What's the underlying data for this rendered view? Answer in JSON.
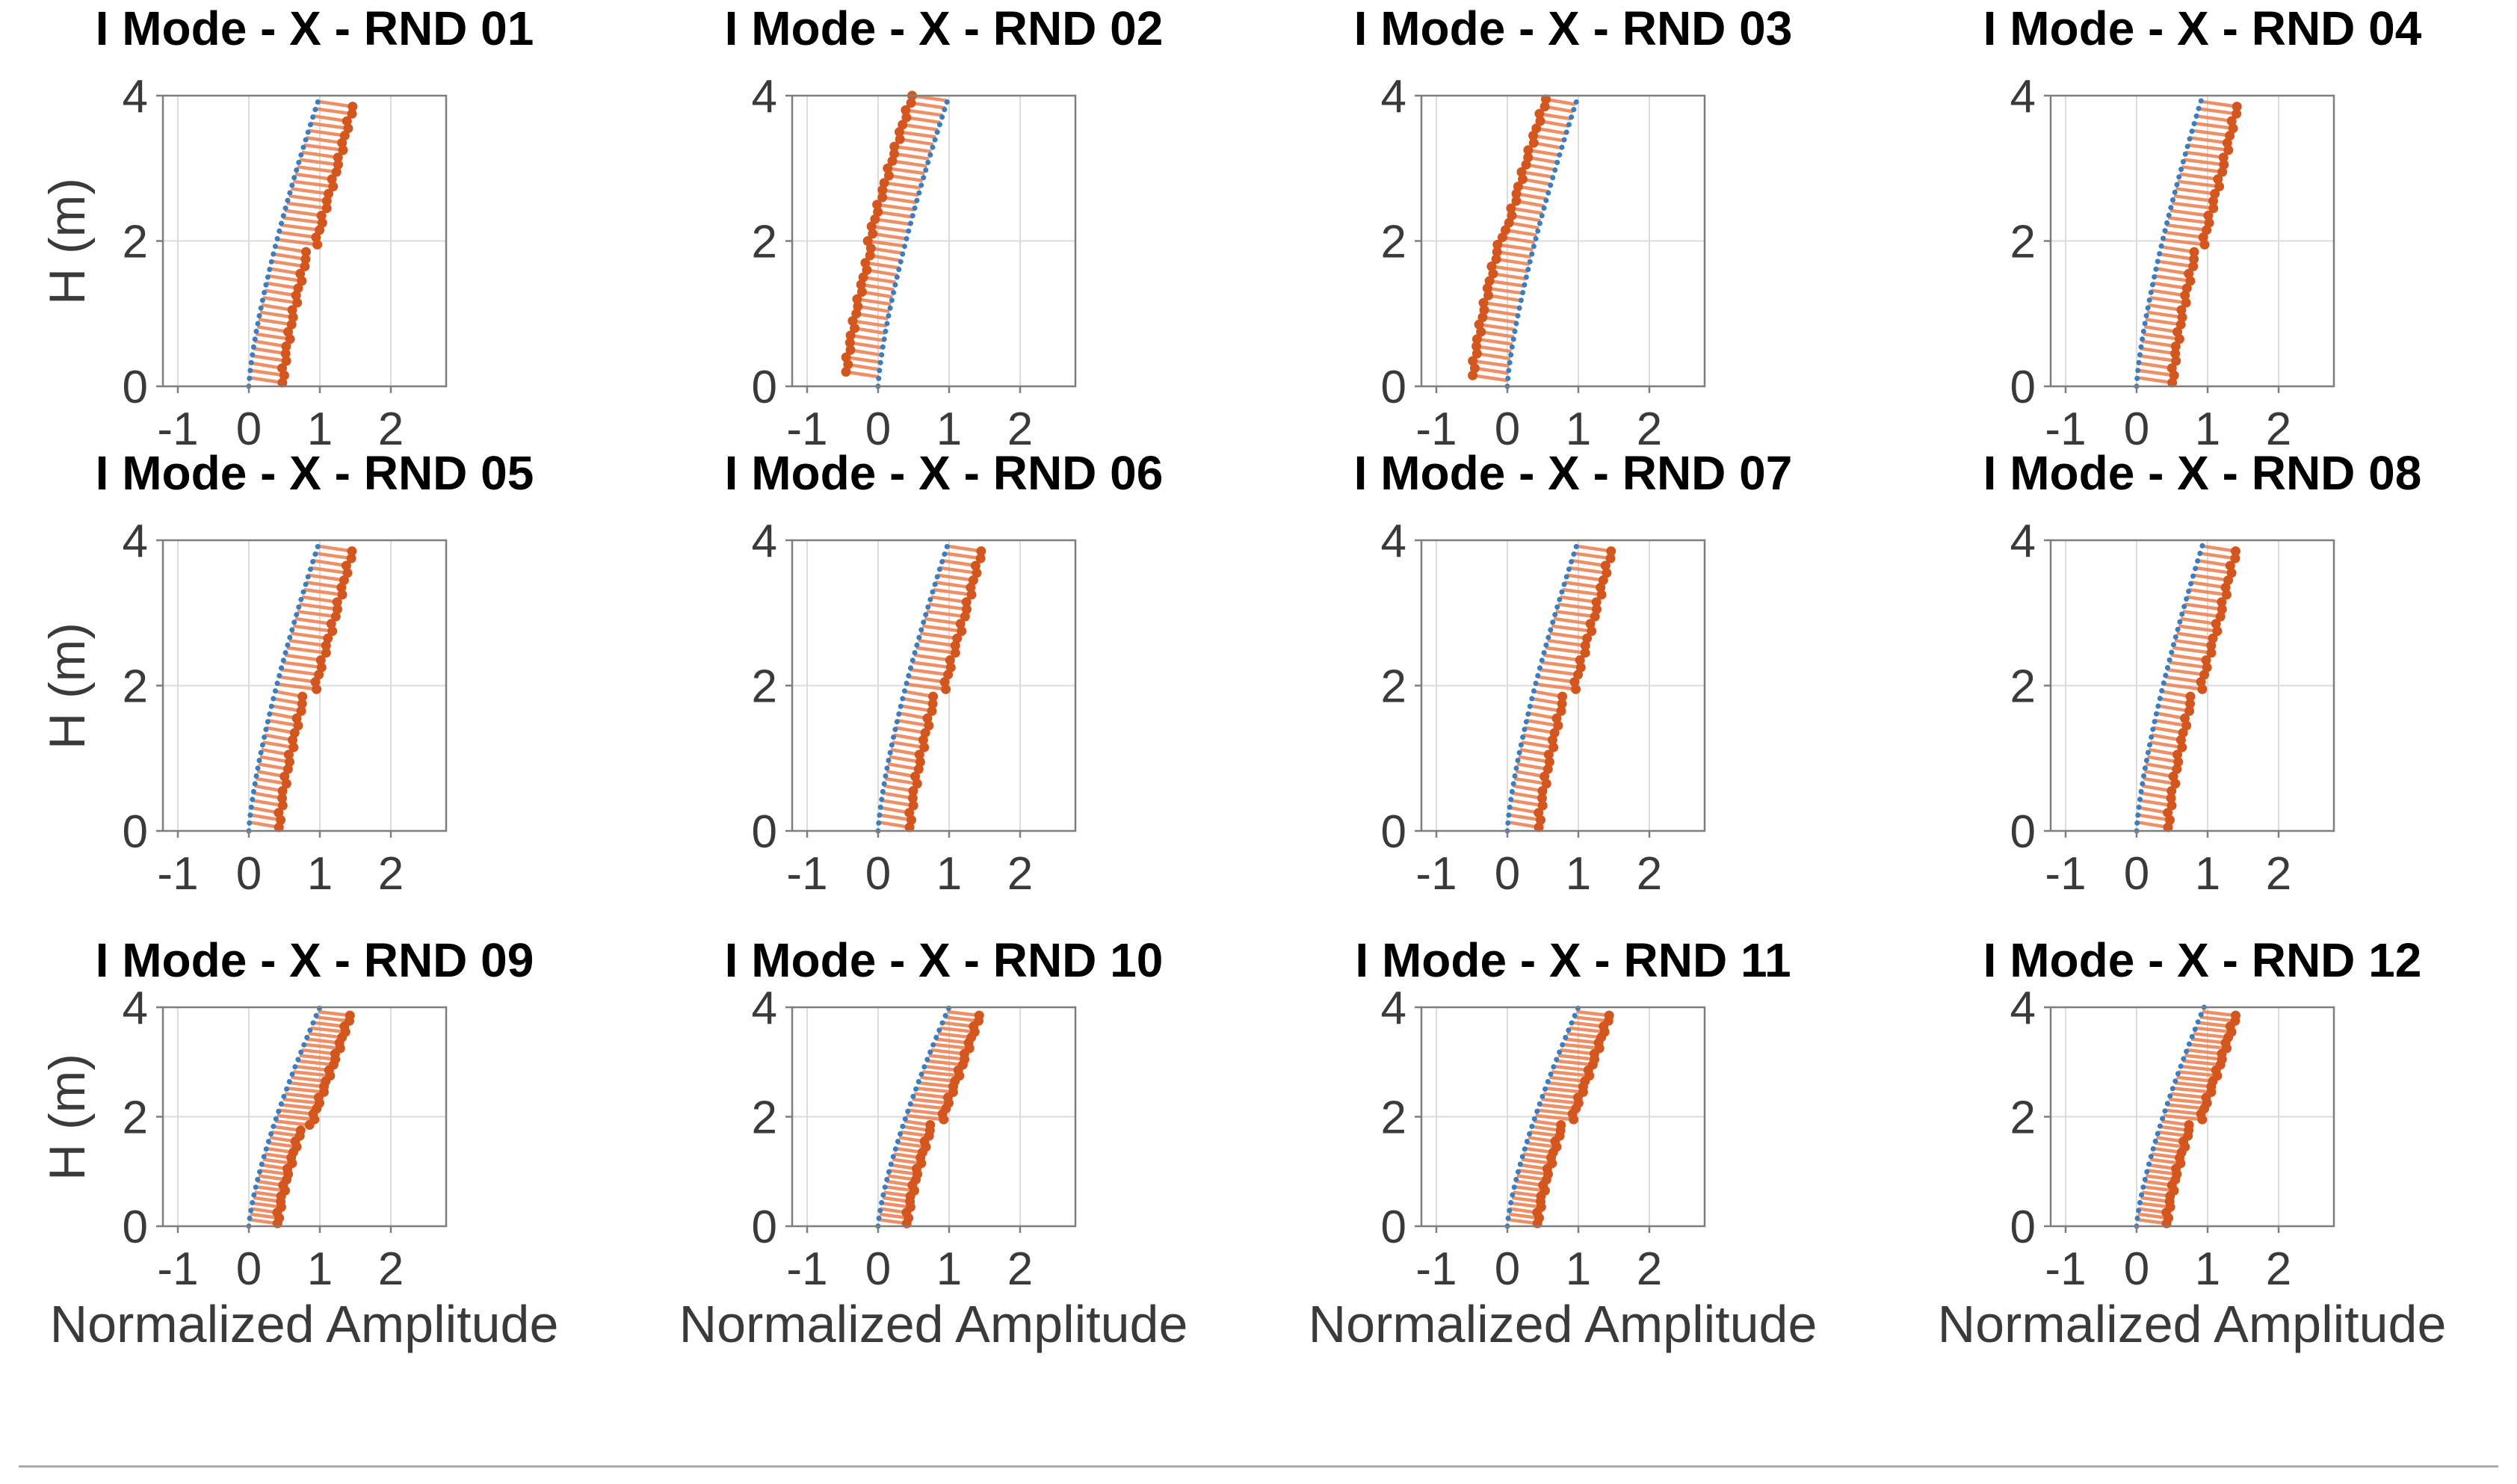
{
  "figure": {
    "grid": {
      "rows": 3,
      "cols": 4
    },
    "xlabel": "Normalized Amplitude",
    "ylabel": "H (m)",
    "colors": {
      "reference_line": "#3b7ec0",
      "identified_segments": "#ed8354",
      "identified_dots": "#d4561f",
      "grid_line": "#dcdcdc",
      "axes_box": "#7e7e7e",
      "tick_text": "#3a3a3a",
      "title_text": "#000000",
      "divider": "#ababab"
    }
  },
  "chart_data": [
    {
      "type": "line",
      "title": "I Mode - X - RND 01",
      "xlabel": "Normalized Amplitude",
      "ylabel": "H (m)",
      "xlim": [
        -1.21,
        2.78
      ],
      "ylim": [
        0,
        4
      ],
      "xticks": [
        -1,
        0,
        1,
        2
      ],
      "yticks": [
        0,
        2,
        4
      ],
      "grid": true,
      "series": [
        {
          "name": "reference mode shape",
          "style": "dotted line",
          "color": "#3b7ec0",
          "curve": {
            "x_at_h0": 0,
            "x_at_h4": 1.0,
            "exponent": 1.35
          }
        },
        {
          "name": "identified mode shape",
          "style": "hatch segments with end dots",
          "color": "#d4561f",
          "side": "right",
          "h_start": 0.05,
          "h_end": 3.85,
          "h_step": 0.1,
          "offset_below": 0.47,
          "offset_above": 0.56,
          "step_h": 1.95
        }
      ]
    },
    {
      "type": "line",
      "title": "I Mode - X - RND 02",
      "xlabel": "Normalized Amplitude",
      "ylabel": "H (m)",
      "xlim": [
        -1.21,
        2.78
      ],
      "ylim": [
        0,
        4
      ],
      "xticks": [
        -1,
        0,
        1,
        2
      ],
      "yticks": [
        0,
        2,
        4
      ],
      "grid": true,
      "series": [
        {
          "name": "reference mode shape",
          "style": "dotted line",
          "color": "#3b7ec0",
          "curve": {
            "x_at_h0": 0,
            "x_at_h4": 1.0,
            "exponent": 1.35
          }
        },
        {
          "name": "identified mode shape",
          "style": "hatch segments with end dots",
          "color": "#d4561f",
          "side": "left",
          "h_start": 0.2,
          "h_end": 4.0,
          "h_step": 0.1,
          "offset_below": -0.47,
          "offset_above": -0.52,
          "step_h": 2.0
        }
      ]
    },
    {
      "type": "line",
      "title": "I Mode - X - RND 03",
      "xlabel": "Normalized Amplitude",
      "ylabel": "H (m)",
      "xlim": [
        -1.21,
        2.78
      ],
      "ylim": [
        0,
        4
      ],
      "xticks": [
        -1,
        0,
        1,
        2
      ],
      "yticks": [
        0,
        2,
        4
      ],
      "grid": true,
      "series": [
        {
          "name": "reference mode shape",
          "style": "dotted line",
          "color": "#3b7ec0",
          "curve": {
            "x_at_h0": 0,
            "x_at_h4": 1.0,
            "exponent": 1.35
          }
        },
        {
          "name": "identified mode shape",
          "style": "hatch segments with end dots",
          "color": "#d4561f",
          "side": "left",
          "h_start": 0.15,
          "h_end": 4.0,
          "h_step": 0.1,
          "offset_below": -0.5,
          "offset_above": -0.44,
          "step_h": 2.1
        }
      ]
    },
    {
      "type": "line",
      "title": "I Mode - X - RND 04",
      "xlabel": "Normalized Amplitude",
      "ylabel": "H (m)",
      "xlim": [
        -1.21,
        2.78
      ],
      "ylim": [
        0,
        4
      ],
      "xticks": [
        -1,
        0,
        1,
        2
      ],
      "yticks": [
        0,
        2,
        4
      ],
      "grid": true,
      "series": [
        {
          "name": "reference mode shape",
          "style": "dotted line",
          "color": "#3b7ec0",
          "curve": {
            "x_at_h0": 0,
            "x_at_h4": 0.93,
            "exponent": 1.35
          }
        },
        {
          "name": "identified mode shape",
          "style": "hatch segments with end dots",
          "color": "#d4561f",
          "side": "right",
          "h_start": 0.05,
          "h_end": 3.85,
          "h_step": 0.1,
          "offset_below": 0.5,
          "offset_above": 0.58,
          "step_h": 1.9
        }
      ]
    },
    {
      "type": "line",
      "title": "I Mode - X - RND 05",
      "xlabel": "Normalized Amplitude",
      "ylabel": "H (m)",
      "xlim": [
        -1.21,
        2.78
      ],
      "ylim": [
        0,
        4
      ],
      "xticks": [
        -1,
        0,
        1,
        2
      ],
      "yticks": [
        0,
        2,
        4
      ],
      "grid": true,
      "series": [
        {
          "name": "reference mode shape",
          "style": "dotted line",
          "color": "#3b7ec0",
          "curve": {
            "x_at_h0": 0,
            "x_at_h4": 1.0,
            "exponent": 1.35
          }
        },
        {
          "name": "identified mode shape",
          "style": "hatch segments with end dots",
          "color": "#d4561f",
          "side": "right",
          "h_start": 0.05,
          "h_end": 3.85,
          "h_step": 0.1,
          "offset_below": 0.42,
          "offset_above": 0.55,
          "step_h": 1.95
        }
      ]
    },
    {
      "type": "line",
      "title": "I Mode - X - RND 06",
      "xlabel": "Normalized Amplitude",
      "ylabel": "H (m)",
      "xlim": [
        -1.21,
        2.78
      ],
      "ylim": [
        0,
        4
      ],
      "xticks": [
        -1,
        0,
        1,
        2
      ],
      "yticks": [
        0,
        2,
        4
      ],
      "grid": true,
      "series": [
        {
          "name": "reference mode shape",
          "style": "dotted line",
          "color": "#3b7ec0",
          "curve": {
            "x_at_h0": 0,
            "x_at_h4": 1.0,
            "exponent": 1.35
          }
        },
        {
          "name": "identified mode shape",
          "style": "hatch segments with end dots",
          "color": "#d4561f",
          "side": "right",
          "h_start": 0.05,
          "h_end": 3.85,
          "h_step": 0.1,
          "offset_below": 0.44,
          "offset_above": 0.55,
          "step_h": 1.95
        }
      ]
    },
    {
      "type": "line",
      "title": "I Mode - X - RND 07",
      "xlabel": "Normalized Amplitude",
      "ylabel": "H (m)",
      "xlim": [
        -1.21,
        2.78
      ],
      "ylim": [
        0,
        4
      ],
      "xticks": [
        -1,
        0,
        1,
        2
      ],
      "yticks": [
        0,
        2,
        4
      ],
      "grid": true,
      "series": [
        {
          "name": "reference mode shape",
          "style": "dotted line",
          "color": "#3b7ec0",
          "curve": {
            "x_at_h0": 0,
            "x_at_h4": 1.0,
            "exponent": 1.35
          }
        },
        {
          "name": "identified mode shape",
          "style": "hatch segments with end dots",
          "color": "#d4561f",
          "side": "right",
          "h_start": 0.05,
          "h_end": 3.85,
          "h_step": 0.1,
          "offset_below": 0.44,
          "offset_above": 0.56,
          "step_h": 1.95
        }
      ]
    },
    {
      "type": "line",
      "title": "I Mode - X - RND 08",
      "xlabel": "Normalized Amplitude",
      "ylabel": "H (m)",
      "xlim": [
        -1.21,
        2.78
      ],
      "ylim": [
        0,
        4
      ],
      "xticks": [
        -1,
        0,
        1,
        2
      ],
      "yticks": [
        0,
        2,
        4
      ],
      "grid": true,
      "series": [
        {
          "name": "reference mode shape",
          "style": "dotted line",
          "color": "#3b7ec0",
          "curve": {
            "x_at_h0": 0,
            "x_at_h4": 0.95,
            "exponent": 1.35
          }
        },
        {
          "name": "identified mode shape",
          "style": "hatch segments with end dots",
          "color": "#d4561f",
          "side": "right",
          "h_start": 0.05,
          "h_end": 3.85,
          "h_step": 0.1,
          "offset_below": 0.44,
          "offset_above": 0.54,
          "step_h": 1.9
        }
      ]
    },
    {
      "type": "line",
      "title": "I Mode - X - RND 09",
      "xlabel": "Normalized Amplitude",
      "ylabel": "H (m)",
      "xlim": [
        -1.21,
        2.78
      ],
      "ylim": [
        0,
        4
      ],
      "xticks": [
        -1,
        0,
        1,
        2
      ],
      "yticks": [
        0,
        2,
        4
      ],
      "grid": true,
      "series": [
        {
          "name": "reference mode shape",
          "style": "dotted line",
          "color": "#3b7ec0",
          "curve": {
            "x_at_h0": 0,
            "x_at_h4": 1.0,
            "exponent": 1.35
          }
        },
        {
          "name": "identified mode shape",
          "style": "hatch segments with end dots",
          "color": "#d4561f",
          "side": "right",
          "h_start": 0.05,
          "h_end": 3.85,
          "h_step": 0.1,
          "offset_below": 0.4,
          "offset_above": 0.52,
          "step_h": 1.85
        }
      ]
    },
    {
      "type": "line",
      "title": "I Mode - X - RND 10",
      "xlabel": "Normalized Amplitude",
      "ylabel": "H (m)",
      "xlim": [
        -1.21,
        2.78
      ],
      "ylim": [
        0,
        4
      ],
      "xticks": [
        -1,
        0,
        1,
        2
      ],
      "yticks": [
        0,
        2,
        4
      ],
      "grid": true,
      "series": [
        {
          "name": "reference mode shape",
          "style": "dotted line",
          "color": "#3b7ec0",
          "curve": {
            "x_at_h0": 0,
            "x_at_h4": 1.0,
            "exponent": 1.35
          }
        },
        {
          "name": "identified mode shape",
          "style": "hatch segments with end dots",
          "color": "#d4561f",
          "side": "right",
          "h_start": 0.05,
          "h_end": 3.85,
          "h_step": 0.1,
          "offset_below": 0.4,
          "offset_above": 0.52,
          "step_h": 1.9
        }
      ]
    },
    {
      "type": "line",
      "title": "I Mode - X - RND 11",
      "xlabel": "Normalized Amplitude",
      "ylabel": "H (m)",
      "xlim": [
        -1.21,
        2.78
      ],
      "ylim": [
        0,
        4
      ],
      "xticks": [
        -1,
        0,
        1,
        2
      ],
      "yticks": [
        0,
        2,
        4
      ],
      "grid": true,
      "series": [
        {
          "name": "reference mode shape",
          "style": "dotted line",
          "color": "#3b7ec0",
          "curve": {
            "x_at_h0": 0,
            "x_at_h4": 1.0,
            "exponent": 1.35
          }
        },
        {
          "name": "identified mode shape",
          "style": "hatch segments with end dots",
          "color": "#d4561f",
          "side": "right",
          "h_start": 0.05,
          "h_end": 3.85,
          "h_step": 0.1,
          "offset_below": 0.42,
          "offset_above": 0.53,
          "step_h": 1.9
        }
      ]
    },
    {
      "type": "line",
      "title": "I Mode - X - RND 12",
      "xlabel": "Normalized Amplitude",
      "ylabel": "H (m)",
      "xlim": [
        -1.21,
        2.78
      ],
      "ylim": [
        0,
        4
      ],
      "xticks": [
        -1,
        0,
        1,
        2
      ],
      "yticks": [
        0,
        2,
        4
      ],
      "grid": true,
      "series": [
        {
          "name": "reference mode shape",
          "style": "dotted line",
          "color": "#3b7ec0",
          "curve": {
            "x_at_h0": 0,
            "x_at_h4": 0.95,
            "exponent": 1.35
          }
        },
        {
          "name": "identified mode shape",
          "style": "hatch segments with end dots",
          "color": "#d4561f",
          "side": "right",
          "h_start": 0.05,
          "h_end": 3.85,
          "h_step": 0.1,
          "offset_below": 0.42,
          "offset_above": 0.54,
          "step_h": 1.9
        }
      ]
    }
  ]
}
